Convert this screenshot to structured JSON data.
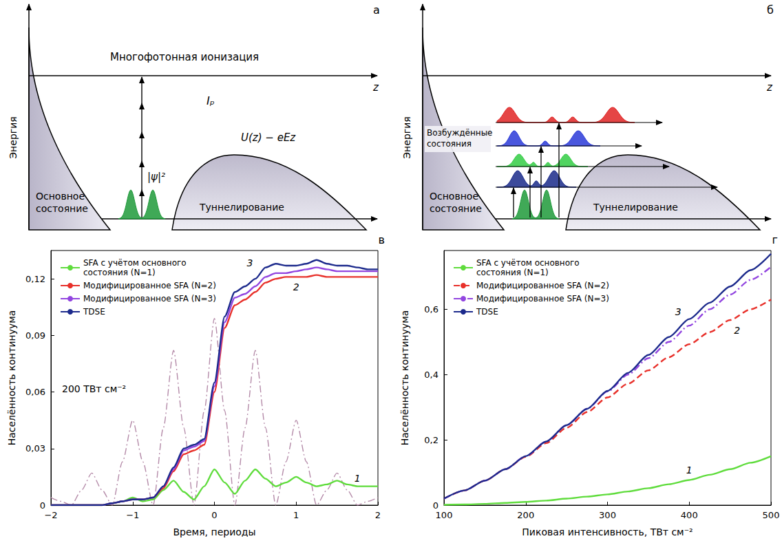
{
  "diagrams": [
    {
      "panel_label": "а",
      "y_axis": "Энергия",
      "x_axis": "z",
      "texts": {
        "process": "Многофотонная ионизация",
        "ionization_potential": "Iₚ",
        "potential": "U(z) − eEz",
        "density": "|ψ|²",
        "ground_state": "Основное состояние",
        "tunneling": "Туннелирование"
      }
    },
    {
      "panel_label": "б",
      "y_axis": "Энергия",
      "x_axis": "z",
      "texts": {
        "excited_states": "Возбуждённые состояния",
        "ground_state": "Основное состояние",
        "tunneling": "Туннелирование"
      }
    }
  ],
  "chart_data": [
    {
      "type": "line",
      "panel_label": "в",
      "annotations": [
        "200 ТВт см⁻²"
      ],
      "x_label": "Время, периоды",
      "y_label": "Населённость континуума",
      "x": [
        -2,
        -1.875,
        -1.75,
        -1.625,
        -1.5,
        -1.375,
        -1.25,
        -1.125,
        -1,
        -0.875,
        -0.75,
        -0.625,
        -0.5,
        -0.375,
        -0.25,
        -0.125,
        0,
        0.125,
        0.25,
        0.375,
        0.5,
        0.625,
        0.75,
        0.875,
        1,
        1.125,
        1.25,
        1.375,
        1.5,
        1.625,
        1.75,
        1.875,
        2
      ],
      "xlim": [
        -2,
        2
      ],
      "xticks": [
        {
          "value": -2,
          "label": "−2"
        },
        {
          "value": -1,
          "label": "−1"
        },
        0,
        1,
        2
      ],
      "ylim": [
        0,
        0.135
      ],
      "yticks": [
        0,
        {
          "value": 0.03,
          "label": "0,03"
        },
        {
          "value": 0.06,
          "label": "0,06"
        },
        {
          "value": 0.09,
          "label": "0,09"
        },
        {
          "value": 0.12,
          "label": "0,12"
        }
      ],
      "legend": "upper left",
      "grid": false,
      "series": [
        {
          "name": "SFA с учётом основного состояния (N=1)",
          "curve_label": "1",
          "color": "#5fdc3c",
          "line_style": "solid",
          "values": [
            0,
            0,
            0,
            0,
            0,
            0,
            0.001,
            0.002,
            0.004,
            0.002,
            0.003,
            0.008,
            0.013,
            0.007,
            0.003,
            0.01,
            0.019,
            0.012,
            0.006,
            0.013,
            0.019,
            0.014,
            0.01,
            0.012,
            0.015,
            0.012,
            0.01,
            0.011,
            0.013,
            0.011,
            0.01,
            0.01,
            0.01
          ]
        },
        {
          "name": "Модифицированное SFA (N=2)",
          "curve_label": "2",
          "color": "#e8302a",
          "line_style": "solid",
          "values": [
            0,
            0,
            0,
            0,
            0,
            0,
            0.001,
            0.002,
            0.003,
            0.003,
            0.004,
            0.009,
            0.018,
            0.027,
            0.029,
            0.032,
            0.06,
            0.094,
            0.106,
            0.109,
            0.113,
            0.118,
            0.12,
            0.121,
            0.121,
            0.121,
            0.122,
            0.121,
            0.121,
            0.121,
            0.121,
            0.121,
            0.121
          ]
        },
        {
          "name": "Модифицированное SFA (N=3)",
          "curve_label": "3",
          "color": "#9245e0",
          "line_style": "solid",
          "values": [
            0,
            0,
            0,
            0,
            0,
            0,
            0.001,
            0.002,
            0.003,
            0.003,
            0.004,
            0.01,
            0.019,
            0.029,
            0.031,
            0.034,
            0.063,
            0.097,
            0.11,
            0.112,
            0.116,
            0.121,
            0.123,
            0.123,
            0.124,
            0.125,
            0.126,
            0.125,
            0.124,
            0.124,
            0.124,
            0.124,
            0.124
          ]
        },
        {
          "name": "TDSE",
          "color": "#1c2a8c",
          "line_style": "solid",
          "values": [
            0,
            0,
            0,
            0,
            0,
            0,
            0.001,
            0.002,
            0.003,
            0.003,
            0.004,
            0.01,
            0.02,
            0.03,
            0.032,
            0.035,
            0.065,
            0.1,
            0.113,
            0.116,
            0.12,
            0.126,
            0.128,
            0.127,
            0.127,
            0.128,
            0.13,
            0.128,
            0.127,
            0.127,
            0.126,
            0.125,
            0.125
          ]
        },
        {
          "color": "#b48aa8",
          "line_style": "dashdot",
          "values": [
            0.004,
            0.002,
            0,
            0.008,
            0.017,
            0.008,
            0,
            0.023,
            0.045,
            0.023,
            0,
            0.041,
            0.082,
            0.041,
            0,
            0.05,
            0.099,
            0.05,
            0,
            0.041,
            0.082,
            0.041,
            0,
            0.023,
            0.045,
            0.023,
            0,
            0.008,
            0.017,
            0.008,
            0,
            0.002,
            0.004
          ]
        }
      ]
    },
    {
      "type": "line",
      "panel_label": "г",
      "x_label": "Пиковая интенсивность, ТВт см⁻²",
      "y_label": "Населённость континуума",
      "x": [
        100,
        125,
        150,
        175,
        200,
        225,
        250,
        275,
        300,
        325,
        350,
        375,
        400,
        425,
        450,
        475,
        500
      ],
      "xlim": [
        100,
        500
      ],
      "xticks": [
        100,
        200,
        300,
        400,
        500
      ],
      "ylim": [
        0,
        0.78
      ],
      "yticks": [
        0,
        {
          "value": 0.2,
          "label": "0,2"
        },
        {
          "value": 0.4,
          "label": "0,4"
        },
        {
          "value": 0.6,
          "label": "0,6"
        }
      ],
      "legend": "upper left",
      "grid": false,
      "series": [
        {
          "name": "SFA с учётом основного состояния (N=1)",
          "curve_label": "1",
          "color": "#5fdc3c",
          "line_style": "solid",
          "values": [
            0.001,
            0.002,
            0.004,
            0.007,
            0.01,
            0.014,
            0.02,
            0.026,
            0.033,
            0.042,
            0.052,
            0.064,
            0.077,
            0.093,
            0.11,
            0.13,
            0.15
          ]
        },
        {
          "name": "Модифицированное SFA (N=2)",
          "curve_label": "2",
          "color": "#e8302a",
          "line_style": "dashed",
          "values": [
            0.02,
            0.045,
            0.075,
            0.11,
            0.148,
            0.19,
            0.237,
            0.285,
            0.33,
            0.372,
            0.413,
            0.453,
            0.493,
            0.53,
            0.567,
            0.6,
            0.63
          ]
        },
        {
          "name": "Модифицированное SFA (N=3)",
          "curve_label": "3",
          "color": "#9245e0",
          "line_style": "dashdot",
          "values": [
            0.02,
            0.045,
            0.075,
            0.11,
            0.15,
            0.195,
            0.245,
            0.295,
            0.348,
            0.4,
            0.45,
            0.5,
            0.55,
            0.6,
            0.645,
            0.69,
            0.73
          ]
        },
        {
          "name": "TDSE",
          "color": "#1c2a8c",
          "line_style": "solid",
          "values": [
            0.02,
            0.045,
            0.075,
            0.11,
            0.15,
            0.195,
            0.245,
            0.295,
            0.35,
            0.405,
            0.46,
            0.515,
            0.57,
            0.62,
            0.67,
            0.72,
            0.77
          ]
        }
      ]
    }
  ]
}
